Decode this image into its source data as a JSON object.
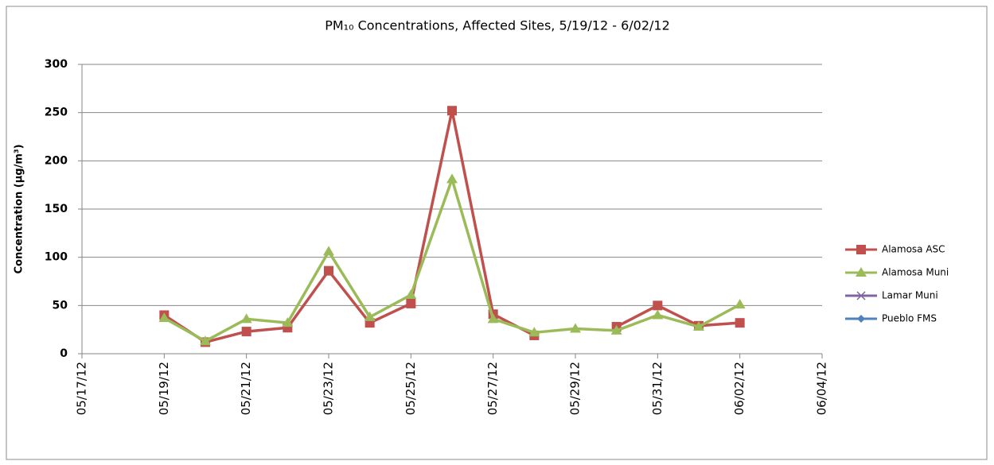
{
  "chart_data": {
    "type": "line",
    "title": "PM₁₀ Concentrations, Affected Sites, 5/19/12 - 6/02/12",
    "y_label": "Concentration (µg/m³)",
    "x": [
      "05/19/12",
      "05/20/12",
      "05/21/12",
      "05/22/12",
      "05/23/12",
      "05/24/12",
      "05/25/12",
      "05/26/12",
      "05/27/12",
      "05/28/12",
      "05/29/12",
      "05/30/12",
      "05/31/12",
      "06/01/12",
      "06/02/12"
    ],
    "series": [
      {
        "name": "Alamosa ASC",
        "color": "#c0504d",
        "marker": "square",
        "values": [
          40,
          12,
          23,
          27,
          86,
          32,
          52,
          252,
          41,
          19,
          null,
          28,
          50,
          29,
          32
        ]
      },
      {
        "name": "Alamosa Muni",
        "color": "#9bbb59",
        "marker": "triangle",
        "values": [
          37,
          13,
          36,
          32,
          106,
          38,
          61,
          181,
          36,
          22,
          26,
          24,
          40,
          28,
          51
        ]
      },
      {
        "name": "Lamar Muni",
        "color": "#8064a2",
        "marker": "x",
        "values": [
          null,
          null,
          null,
          null,
          null,
          null,
          null,
          null,
          null,
          null,
          null,
          null,
          null,
          null,
          null
        ]
      },
      {
        "name": "Pueblo FMS",
        "color": "#4f81bd",
        "marker": "diamond",
        "values": [
          null,
          null,
          null,
          null,
          null,
          null,
          null,
          null,
          null,
          null,
          null,
          null,
          null,
          null,
          null
        ]
      }
    ],
    "xlim": [
      "05/17/12",
      "06/04/12"
    ],
    "xticks": [
      "05/17/12",
      "05/19/12",
      "05/21/12",
      "05/23/12",
      "05/25/12",
      "05/27/12",
      "05/29/12",
      "05/31/12",
      "06/02/12",
      "06/04/12"
    ],
    "ylim": [
      0,
      300
    ],
    "yticks": [
      0,
      50,
      100,
      150,
      200,
      250,
      300
    ],
    "grid": true,
    "legend": "right"
  }
}
